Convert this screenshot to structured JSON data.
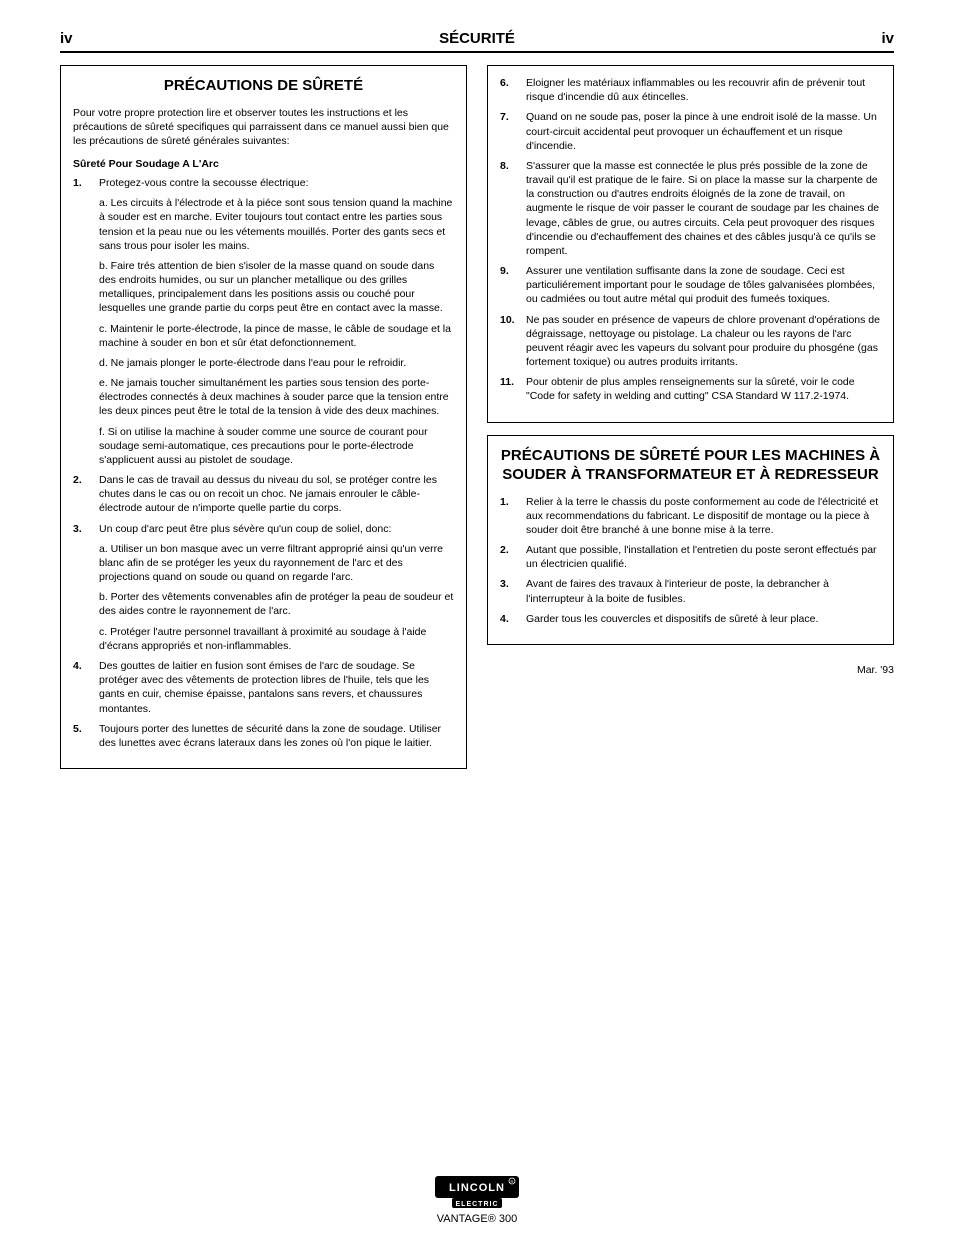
{
  "header": {
    "left": "iv",
    "center": "SÉCURITÉ",
    "right": "iv"
  },
  "footer": "VANTAGE® 300",
  "box1": {
    "title": "PRÉCAUTIONS DE SÛRETÉ",
    "intro": "Pour votre propre protection lire et observer toutes les instructions et les précautions de sûreté specifiques qui parraissent dans ce manuel aussi bien que les précautions de sûreté générales suivantes:",
    "section_label": "Sûreté Pour Soudage A L'Arc",
    "items": [
      "Protegez-vous contre la secousse électrique:",
      "a. Les circuits à l'électrode et à la piéce sont sous tension quand la machine à souder est en marche. Eviter toujours tout contact entre les parties sous tension et la peau nue ou les vétements mouillés. Porter des gants secs et sans trous pour isoler les mains.",
      "b. Faire trés attention de bien s'isoler de la masse quand on soude dans des endroits humides, ou sur un plancher metallique ou des grilles metalliques, principalement dans les positions assis ou couché pour lesquelles une grande partie du corps peut être en contact avec la masse.",
      "c. Maintenir le porte-électrode, la pince de masse, le câble de soudage et la machine à souder en bon et sûr état defonctionnement.",
      "d. Ne jamais plonger le porte-électrode dans l'eau pour le refroidir.",
      "e. Ne jamais toucher simultanément les parties sous tension des porte-électrodes connectés à deux machines à souder parce que la tension entre les deux pinces peut être le total de la tension à vide des deux machines.",
      "f. Si on utilise la machine à souder comme une source de courant pour soudage semi-automatique, ces precautions pour le porte-électrode s'applicuent aussi au pistolet de soudage.",
      "Dans le cas de travail au dessus du niveau du sol, se protéger contre les chutes dans le cas ou on recoit un choc. Ne jamais enrouler le câble-électrode autour de n'importe quelle partie du corps.",
      "Un coup d'arc peut être plus sévère qu'un coup de soliel, donc:",
      "a. Utiliser un bon masque avec un verre filtrant approprié ainsi qu'un verre blanc afin de se protéger les yeux du rayonnement de l'arc et des projections quand on soude ou quand on regarde l'arc.",
      "b. Porter des vêtements convenables afin de protéger la peau de soudeur et des aides contre le rayonnement de l'arc.",
      "c. Protéger l'autre personnel travaillant à proximité au soudage à l'aide d'écrans appropriés et non-inflammables.",
      "Des gouttes de laitier en fusion sont émises de l'arc de soudage. Se protéger avec des vêtements de protection libres de l'huile, tels que les gants en cuir, chemise épaisse, pantalons sans revers, et chaussures montantes.",
      "Toujours porter des lunettes de sécurité dans la zone de soudage. Utiliser des lunettes avec écrans lateraux dans les zones où l'on pique le laitier."
    ]
  },
  "box2": {
    "items": [
      "Eloigner les matériaux inflammables ou les recouvrir afin de prévenir tout risque d'incendie dû aux étincelles.",
      "Quand on ne soude pas, poser la pince à une endroit isolé de la masse. Un court-circuit accidental peut provoquer un échauffement et un risque d'incendie.",
      "S'assurer que la masse est connectée le plus prés possible de la zone de travail qu'il est pratique de le faire. Si on place la masse sur la charpente de la construction ou d'autres endroits éloignés de la zone de travail, on augmente le risque de voir passer le courant de soudage par les chaines de levage, câbles de grue, ou autres circuits. Cela peut provoquer des risques d'incendie ou d'echauffement des chaines et des câbles jusqu'à ce qu'ils se rompent.",
      "Assurer une ventilation suffisante dans la zone de soudage. Ceci est particuliérement important pour le soudage de tôles galvanisées plombées, ou cadmiées ou tout autre métal qui produit des fumeés toxiques.",
      "Ne pas souder en présence de vapeurs de chlore provenant d'opérations de dégraissage, nettoyage ou pistolage. La chaleur ou les rayons de l'arc peuvent réagir avec les vapeurs du solvant pour produire du phosgéne (gas fortement toxique) ou autres produits irritants.",
      "Pour obtenir de plus amples renseignements sur la sûreté, voir le code \"Code for safety in welding and cutting\" CSA Standard W 117.2-1974."
    ],
    "start_num": 6
  },
  "box3": {
    "title": "PRÉCAUTIONS DE SÛRETÉ POUR LES MACHINES À SOUDER À TRANSFORMATEUR ET À REDRESSEUR",
    "items": [
      "Relier à la terre le chassis du poste conformement au code de l'électricité et aux recommendations du fabricant. Le dispositif de montage ou la piece à souder doit être branché à une bonne mise à la terre.",
      "Autant que possible, l'installation et l'entretien du poste seront effectués par un électricien qualifié.",
      "Avant de faires des travaux à l'interieur de poste, la debrancher à l'interrupteur à la boite de fusibles.",
      "Garder tous les couvercles et dispositifs de sûreté à leur place."
    ]
  },
  "rightnote": "Mar. '93",
  "colors": {
    "rule": "#000000",
    "text": "#000000",
    "bg": "#ffffff"
  }
}
